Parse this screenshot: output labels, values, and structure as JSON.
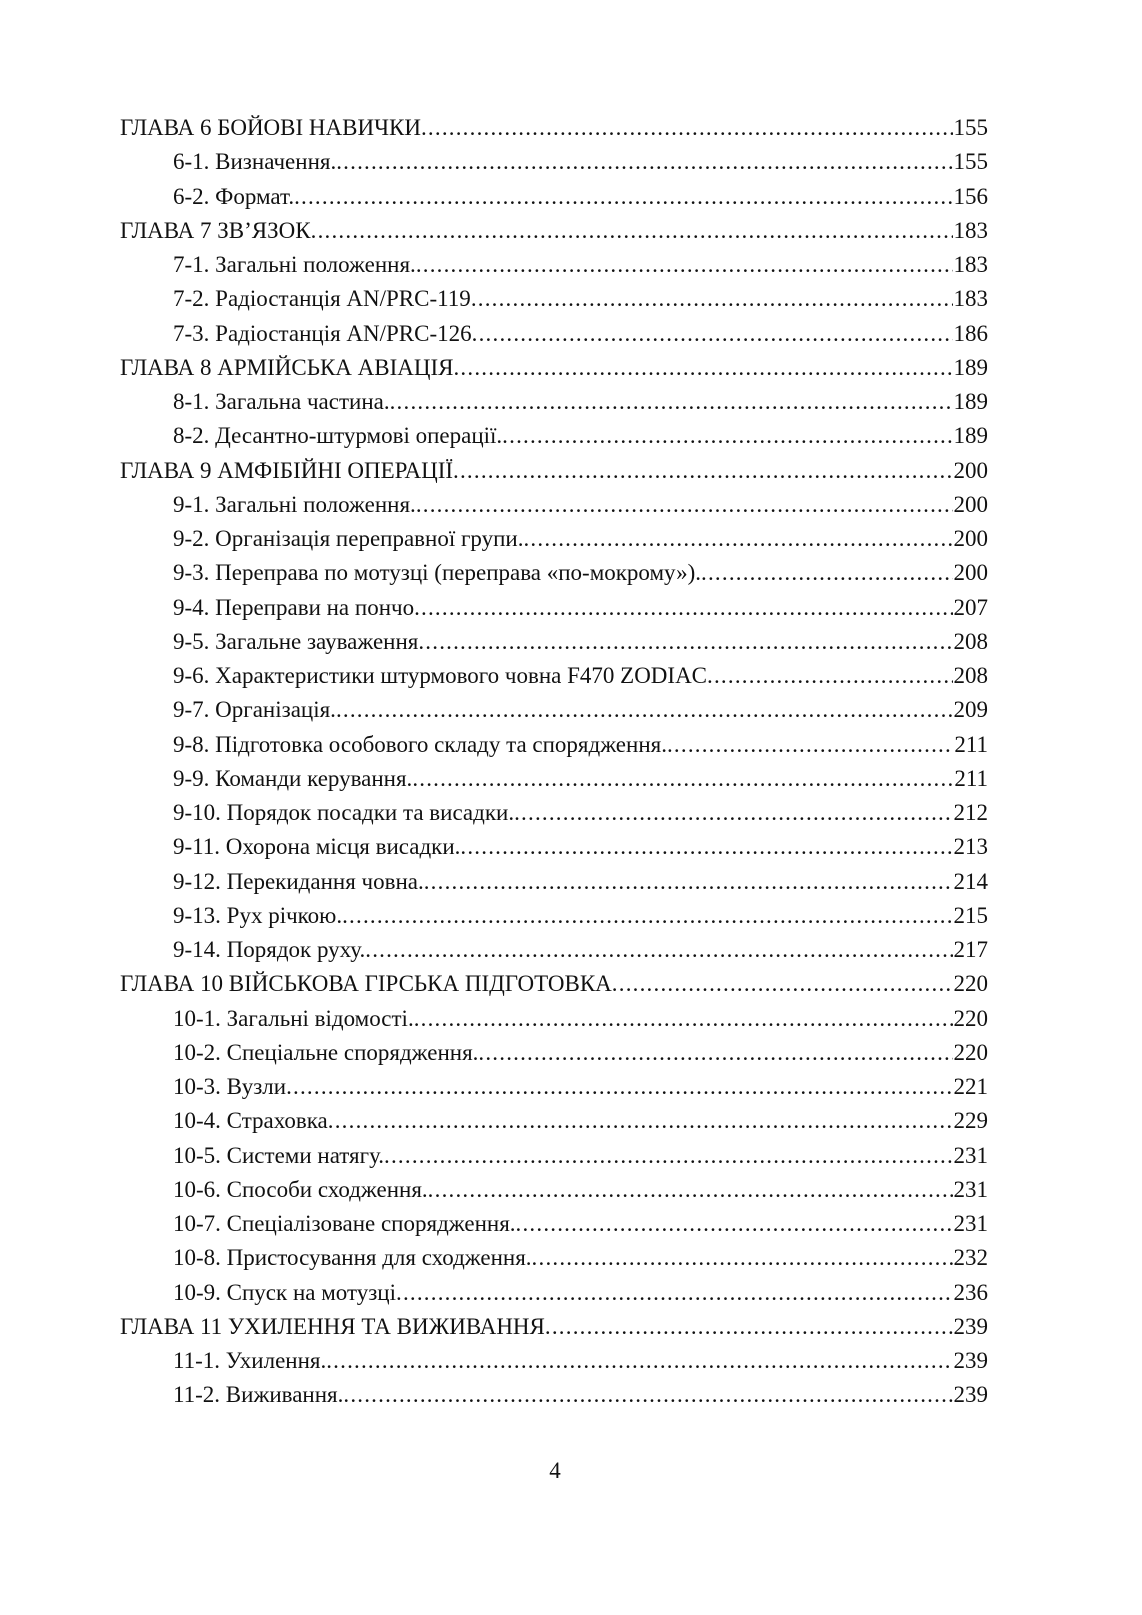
{
  "toc": [
    {
      "level": "chapter",
      "title": "ГЛАВА 6 БОЙОВІ НАВИЧКИ",
      "page": "155"
    },
    {
      "level": "section",
      "title": "6-1. Визначення.",
      "page": "155"
    },
    {
      "level": "section",
      "title": "6-2. Формат.",
      "page": "156"
    },
    {
      "level": "chapter",
      "title": "ГЛАВА 7 ЗВ’ЯЗОК",
      "page": "183"
    },
    {
      "level": "section",
      "title": "7-1. Загальні положення. ",
      "page": "183"
    },
    {
      "level": "section",
      "title": "7-2. Радіостанція AN/PRC-119",
      "page": "183"
    },
    {
      "level": "section",
      "title": "7-3. Радіостанція AN/PRC-126",
      "page": "186"
    },
    {
      "level": "chapter",
      "title": "ГЛАВА 8 АРМІЙСЬКА АВІАЦІЯ",
      "page": "189"
    },
    {
      "level": "section",
      "title": "8-1. Загальна частина.",
      "page": "189"
    },
    {
      "level": "section",
      "title": "8-2. Десантно-штурмові операції. ",
      "page": "189"
    },
    {
      "level": "chapter",
      "title": "ГЛАВА 9 АМФІБІЙНІ ОПЕРАЦІЇ",
      "page": "200"
    },
    {
      "level": "section",
      "title": "9-1. Загальні положення.",
      "page": "200"
    },
    {
      "level": "section",
      "title": "9-2. Організація переправної групи.",
      "page": "200"
    },
    {
      "level": "section",
      "title": "9-3. Переправа по мотузці (переправа «по-мокрому»).",
      "page": "200"
    },
    {
      "level": "section",
      "title": "9-4. Переправи на пончо",
      "page": "207"
    },
    {
      "level": "section",
      "title": "9-5. Загальне зауваження",
      "page": "208"
    },
    {
      "level": "section",
      "title": "9-6. Характеристики штурмового човна F470 ZODIAC",
      "page": "208"
    },
    {
      "level": "section",
      "title": "9-7. Організація. ",
      "page": "209"
    },
    {
      "level": "section",
      "title": "9-8. Підготовка особового складу та спорядження. ",
      "page": "211"
    },
    {
      "level": "section",
      "title": "9-9. Команди керування. ",
      "page": "211"
    },
    {
      "level": "section",
      "title": "9-10. Порядок посадки та висадки. ",
      "page": "212"
    },
    {
      "level": "section",
      "title": "9-11. Охорона місця висадки. ",
      "page": "213"
    },
    {
      "level": "section",
      "title": "9-12. Перекидання човна.",
      "page": "214"
    },
    {
      "level": "section",
      "title": "9-13. Рух річкою.",
      "page": "215"
    },
    {
      "level": "section",
      "title": "9-14. Порядок руху. ",
      "page": "217"
    },
    {
      "level": "chapter",
      "title": "ГЛАВА 10 ВІЙСЬКОВА ГІРСЬКА ПІДГОТОВКА ",
      "page": "220"
    },
    {
      "level": "section",
      "title": "10-1. Загальні відомості.",
      "page": "220"
    },
    {
      "level": "section",
      "title": "10-2. Спеціальне спорядження. ",
      "page": "220"
    },
    {
      "level": "section",
      "title": "10-3. Вузли",
      "page": "221"
    },
    {
      "level": "section",
      "title": "10-4. Страховка ",
      "page": "229"
    },
    {
      "level": "section",
      "title": "10-5. Системи натягу. ",
      "page": "231"
    },
    {
      "level": "section",
      "title": "10-6. Способи сходження.",
      "page": "231"
    },
    {
      "level": "section",
      "title": "10-7. Спеціалізоване спорядження.",
      "page": "231"
    },
    {
      "level": "section",
      "title": "10-8. Пристосування для сходження.",
      "page": "232"
    },
    {
      "level": "section",
      "title": "10-9. Спуск на мотузці",
      "page": "236"
    },
    {
      "level": "chapter",
      "title": "ГЛАВА 11 УХИЛЕННЯ ТА ВИЖИВАННЯ",
      "page": "239"
    },
    {
      "level": "section",
      "title": "11-1. Ухилення. ",
      "page": "239"
    },
    {
      "level": "section",
      "title": "11-2. Виживання.",
      "page": "239"
    }
  ],
  "page_number": "4"
}
